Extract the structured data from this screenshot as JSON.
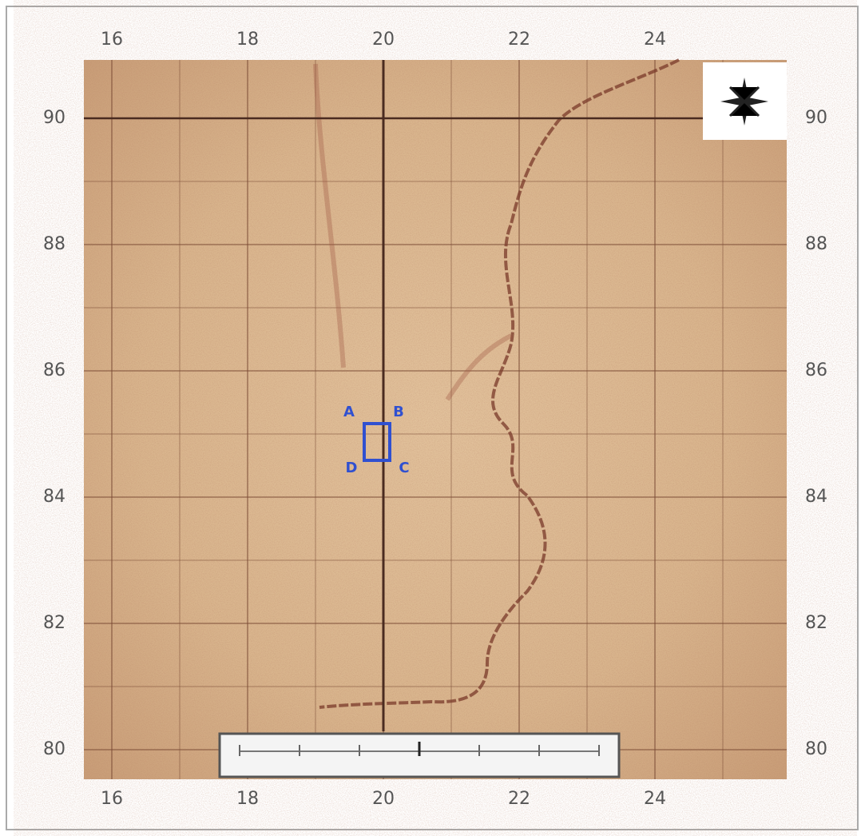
{
  "grid": {
    "top": [
      "16",
      "18",
      "20",
      "22",
      "24"
    ],
    "bottom": [
      "16",
      "18",
      "20",
      "22",
      "24"
    ],
    "left": [
      "90",
      "88",
      "86",
      "84",
      "82",
      "80"
    ],
    "right": [
      "90",
      "88",
      "86",
      "84",
      "82",
      "80"
    ]
  },
  "points": {
    "A": "A",
    "B": "B",
    "C": "C",
    "D": "D"
  }
}
